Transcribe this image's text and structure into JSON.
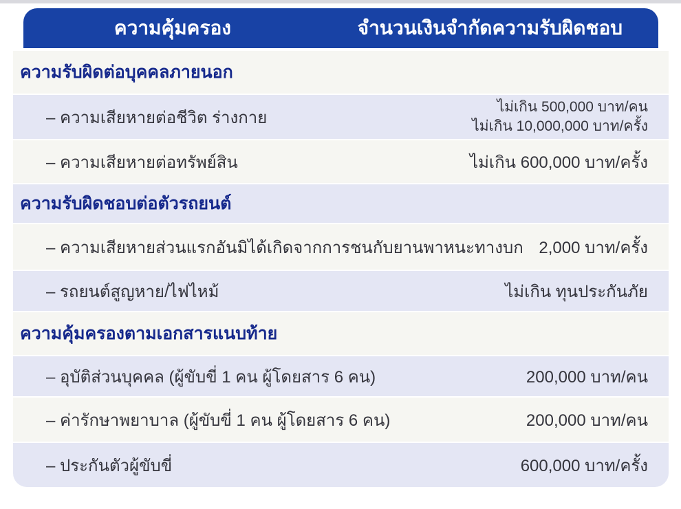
{
  "table": {
    "header": {
      "coverage_col": "ความคุ้มครอง",
      "limit_col": "จำนวนเงินจำกัดความรับผิดชอบ"
    },
    "rows": [
      {
        "type": "section",
        "label": "ความรับผิดต่อบุคคลภายนอก"
      },
      {
        "type": "item",
        "label": "– ความเสียหายต่อชีวิต ร่างกาย",
        "value": "ไม่เกิน 500,000 บาท/คน\nไม่เกิน 10,000,000 บาท/ครั้ง"
      },
      {
        "type": "item",
        "label": "– ความเสียหายต่อทรัพย์สิน",
        "value": "ไม่เกิน 600,000 บาท/ครั้ง"
      },
      {
        "type": "section",
        "label": "ความรับผิดชอบต่อตัวรถยนต์"
      },
      {
        "type": "item",
        "label": "– ความเสียหายส่วนแรกอันมิได้เกิดจากการชนกับยานพาหนะทางบก",
        "value": "2,000 บาท/ครั้ง"
      },
      {
        "type": "item",
        "label": "– รถยนต์สูญหาย/ไฟไหม้",
        "value": "ไม่เกิน ทุนประกันภัย"
      },
      {
        "type": "section",
        "label": "ความคุ้มครองตามเอกสารแนบท้าย"
      },
      {
        "type": "item",
        "label": "– อุบัติส่วนบุคคล (ผู้ขับขี่ 1 คน ผู้โดยสาร 6 คน)",
        "value": "200,000 บาท/คน"
      },
      {
        "type": "item",
        "label": "– ค่ารักษาพยาบาล (ผู้ขับขี่ 1 คน ผู้โดยสาร 6 คน)",
        "value": "200,000 บาท/คน"
      },
      {
        "type": "item",
        "label": "– ประกันตัวผู้ขับขี่",
        "value": "600,000 บาท/ครั้ง"
      }
    ],
    "colors": {
      "header_bg": "#1842a5",
      "header_text": "#ffffff",
      "section_text": "#16298c",
      "row_light_bg": "#f6f6f2",
      "row_lavender_bg": "#e4e6f4",
      "body_text": "#35353d"
    }
  }
}
